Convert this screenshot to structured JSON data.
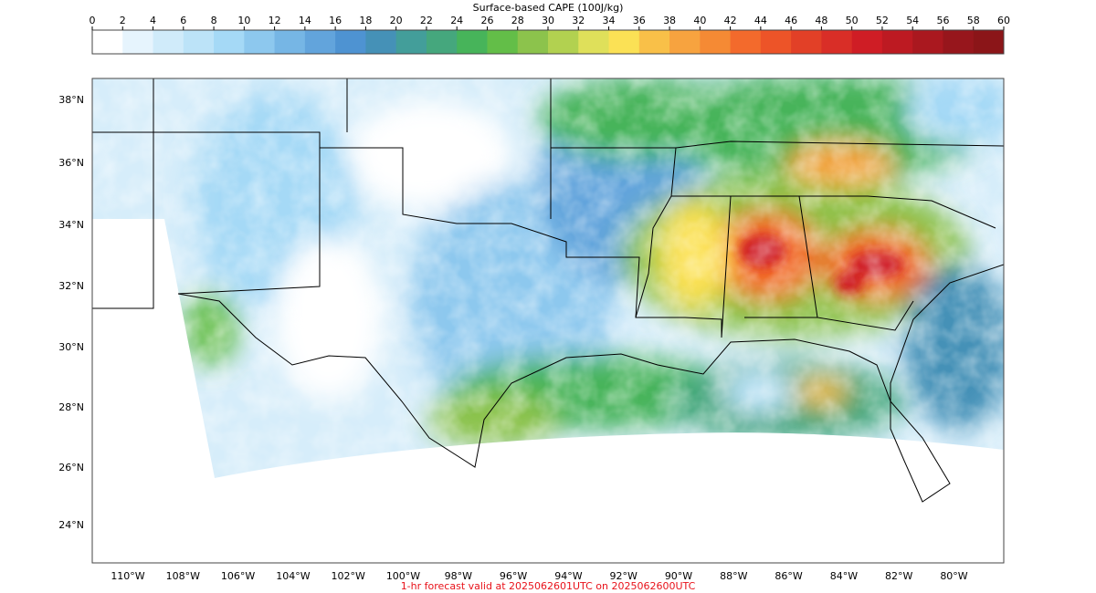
{
  "colorbar": {
    "title": "Surface-based CAPE (100J/kg)",
    "ticks": [
      "0",
      "2",
      "4",
      "6",
      "8",
      "10",
      "12",
      "14",
      "16",
      "18",
      "20",
      "22",
      "24",
      "26",
      "28",
      "30",
      "32",
      "34",
      "36",
      "38",
      "40",
      "42",
      "44",
      "46",
      "48",
      "50",
      "52",
      "54",
      "56",
      "58",
      "60"
    ],
    "colors": [
      "#ffffff",
      "#e6f4fd",
      "#d0ebfa",
      "#bce3f8",
      "#a5d9f6",
      "#8dc8ee",
      "#76b6e5",
      "#62a4dc",
      "#4e93d2",
      "#4591b7",
      "#439e9a",
      "#45a77d",
      "#47b45a",
      "#63be48",
      "#8cc34c",
      "#b2d150",
      "#dfe05a",
      "#fbe155",
      "#f9c048",
      "#f7a33f",
      "#f58a34",
      "#f36a2c",
      "#ed5428",
      "#e24027",
      "#d92e27",
      "#cf1d25",
      "#bd1a22",
      "#aa181f",
      "#97161c",
      "#8b1518"
    ]
  },
  "map": {
    "lat_labels": [
      "38°N",
      "36°N",
      "34°N",
      "32°N",
      "30°N",
      "28°N",
      "26°N",
      "24°N"
    ],
    "lon_labels": [
      "110°W",
      "108°W",
      "106°W",
      "104°W",
      "102°W",
      "100°W",
      "98°W",
      "96°W",
      "94°W",
      "92°W",
      "90°W",
      "88°W",
      "86°W",
      "84°W",
      "82°W",
      "80°W"
    ]
  },
  "footer": "1-hr forecast valid at 2025062601UTC on 2025062600UTC"
}
